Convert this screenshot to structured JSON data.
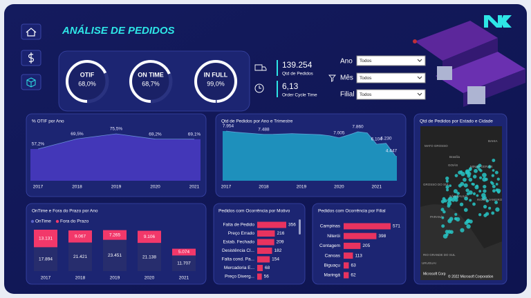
{
  "title": "ANÁLISE DE PEDIDOS",
  "gauges": [
    {
      "label": "OTIF",
      "value": 68.0,
      "value_label": "68,0%"
    },
    {
      "label": "ON TIME",
      "value": 68.7,
      "value_label": "68,7%"
    },
    {
      "label": "IN FULL",
      "value": 99.0,
      "value_label": "99,0%"
    }
  ],
  "stats": [
    {
      "value": 139254,
      "value_label": "139.254",
      "label": "Qtd de Pedidos"
    },
    {
      "value": 6.13,
      "value_label": "6,13",
      "label": "Order Cycle Time"
    }
  ],
  "filters": [
    {
      "label": "Ano",
      "selected": "Todos"
    },
    {
      "label": "Mês",
      "selected": "Todos"
    },
    {
      "label": "Filial",
      "selected": "Todos"
    }
  ],
  "map": {
    "title": "Qtd de Pedidos por Estado e Cidade",
    "place_labels": [
      "MATO GROSSO",
      "BAHIA",
      "Brasília",
      "GOIÁS",
      "MINAS GERAIS",
      "GROSSO DO SUL",
      "SÃO PAULO",
      "RIO DE JANEIRO",
      "PARANÁ",
      "RIO GRANDE DO SUL",
      "URUGUAI"
    ],
    "logo": "Microsoft Corp",
    "attribution": "© 2022 Microsoft Corporation"
  },
  "chart_data": [
    {
      "type": "area",
      "title": "% OTIF por Ano",
      "color": "#4a3bc4",
      "categories": [
        "2017",
        "2018",
        "2019",
        "2020",
        "2021"
      ],
      "values": [
        57.2,
        69.5,
        75.5,
        69.2,
        69.1
      ],
      "value_labels": [
        "57,2%",
        "69,5%",
        "75,5%",
        "69,2%",
        "69,1%"
      ]
    },
    {
      "type": "area",
      "title": "Qtd de Pedidos por Ano e Trimestre",
      "color": "#1fa3c9",
      "categories": [
        "2017",
        null,
        null,
        null,
        "2018",
        null,
        null,
        null,
        "2019",
        null,
        null,
        null,
        "2020",
        null,
        null,
        null,
        "2021",
        null,
        null
      ],
      "values": [
        7954,
        7800,
        7700,
        7600,
        7488,
        7500,
        7550,
        7600,
        7550,
        7500,
        7450,
        7300,
        7005,
        7400,
        7860,
        7700,
        6104,
        6230,
        4447
      ],
      "value_labels": [
        "7.954",
        null,
        null,
        null,
        "7.488",
        null,
        null,
        null,
        null,
        null,
        null,
        null,
        "7.005",
        null,
        "7.860",
        null,
        "6.104",
        "6.230",
        "4.447"
      ]
    },
    {
      "type": "stacked_bar",
      "title": "OnTime e Fora do Prazo por Ano",
      "categories": [
        "2017",
        "2018",
        "2019",
        "2020",
        "2021"
      ],
      "series": [
        {
          "name": "OnTime",
          "color": "#272d6d",
          "values": [
            17894,
            21421,
            23451,
            21138,
            11707
          ],
          "value_labels": [
            "17.894",
            "21.421",
            "23.451",
            "21.138",
            "11.707"
          ]
        },
        {
          "name": "Fora do Prazo",
          "color": "#f2386a",
          "values": [
            13131,
            9067,
            7265,
            9106,
            5074
          ],
          "value_labels": [
            "13.131",
            "9.067",
            "7.265",
            "9.106",
            "5.074"
          ]
        }
      ]
    },
    {
      "type": "hbar",
      "title": "Pedidos com Ocorrência por Motivo",
      "color": "#e8335f",
      "categories": [
        "Falta de Pedido",
        "Preço Errado",
        "Estab. Fechado",
        "Desistência Cl...",
        "Falta cond. Pa...",
        "Mercadoria E...",
        "Preço Diverg..."
      ],
      "values": [
        356,
        216,
        209,
        182,
        154,
        68,
        56
      ]
    },
    {
      "type": "hbar",
      "title": "Pedidos com Ocorrência por Filial",
      "color": "#e8335f",
      "categories": [
        "Campinas",
        "Niterói",
        "Contagem",
        "Canoas",
        "Biguaçu",
        "Maringá"
      ],
      "values": [
        571,
        398,
        205,
        113,
        63,
        62
      ]
    }
  ]
}
